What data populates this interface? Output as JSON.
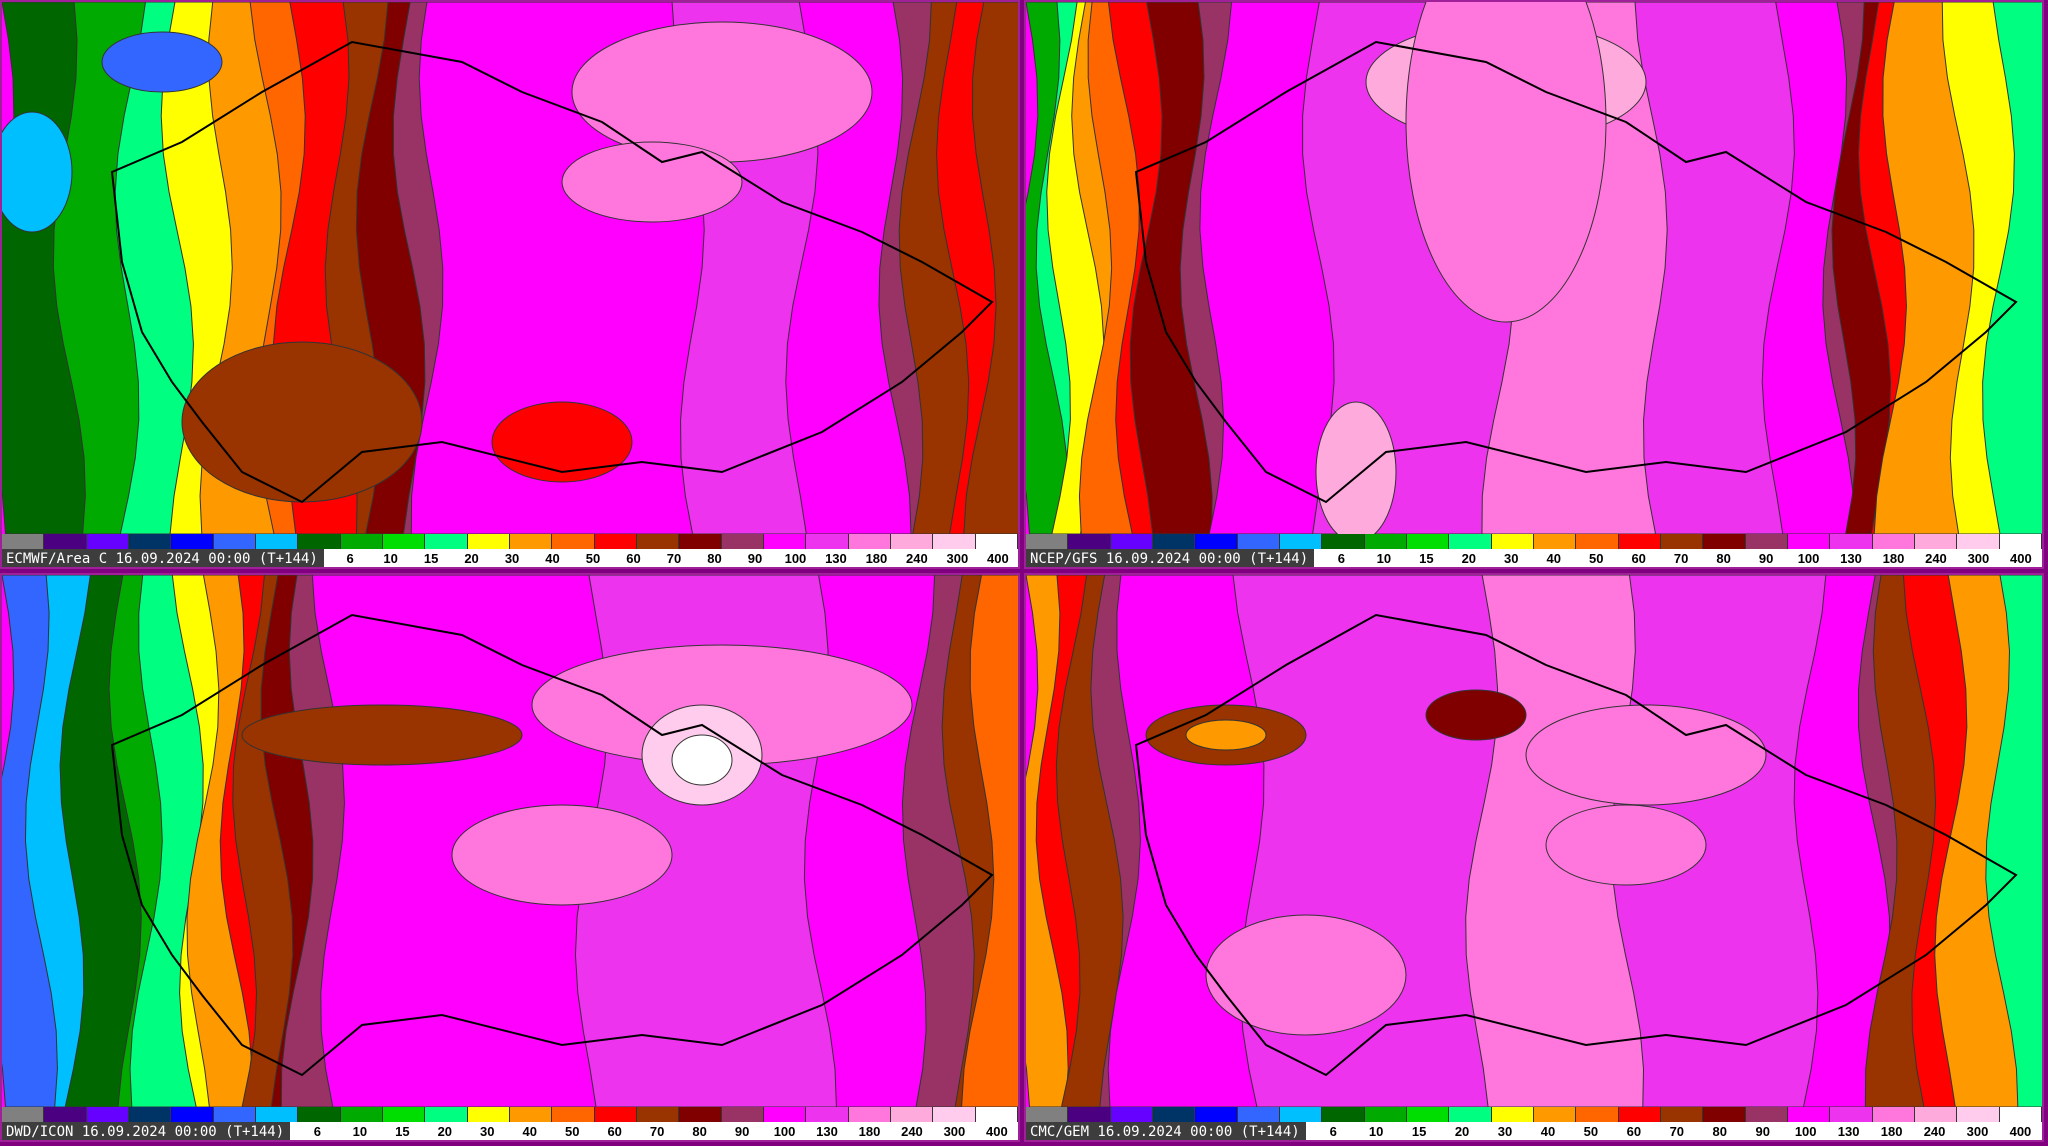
{
  "panels": [
    {
      "title": "ECMWF/Area C 16.09.2024 00:00 (T+144)",
      "style": "ecmwf"
    },
    {
      "title": "NCEP/GFS 16.09.2024 00:00 (T+144)",
      "style": "gfs"
    },
    {
      "title": "DWD/ICON 16.09.2024 00:00 (T+144)",
      "style": "icon"
    },
    {
      "title": "CMC/GEM 16.09.2024 00:00 (T+144)",
      "style": "gem"
    }
  ],
  "legend": {
    "colors": [
      "#808080",
      "#4b0082",
      "#6600ff",
      "#003366",
      "#0000ff",
      "#3366ff",
      "#00bfff",
      "#006600",
      "#00aa00",
      "#00dd00",
      "#00ff80",
      "#ffff00",
      "#ff9900",
      "#ff6600",
      "#ff0000",
      "#993300",
      "#800000",
      "#993366",
      "#ff00ff",
      "#ee33ee",
      "#ff77dd",
      "#ffaadd",
      "#ffccee",
      "#ffffff"
    ],
    "labels": [
      "",
      "",
      "",
      "",
      "",
      "",
      "",
      "6",
      "10",
      "15",
      "20",
      "30",
      "40",
      "50",
      "60",
      "70",
      "80",
      "90",
      "100",
      "130",
      "180",
      "240",
      "300",
      "400"
    ]
  }
}
